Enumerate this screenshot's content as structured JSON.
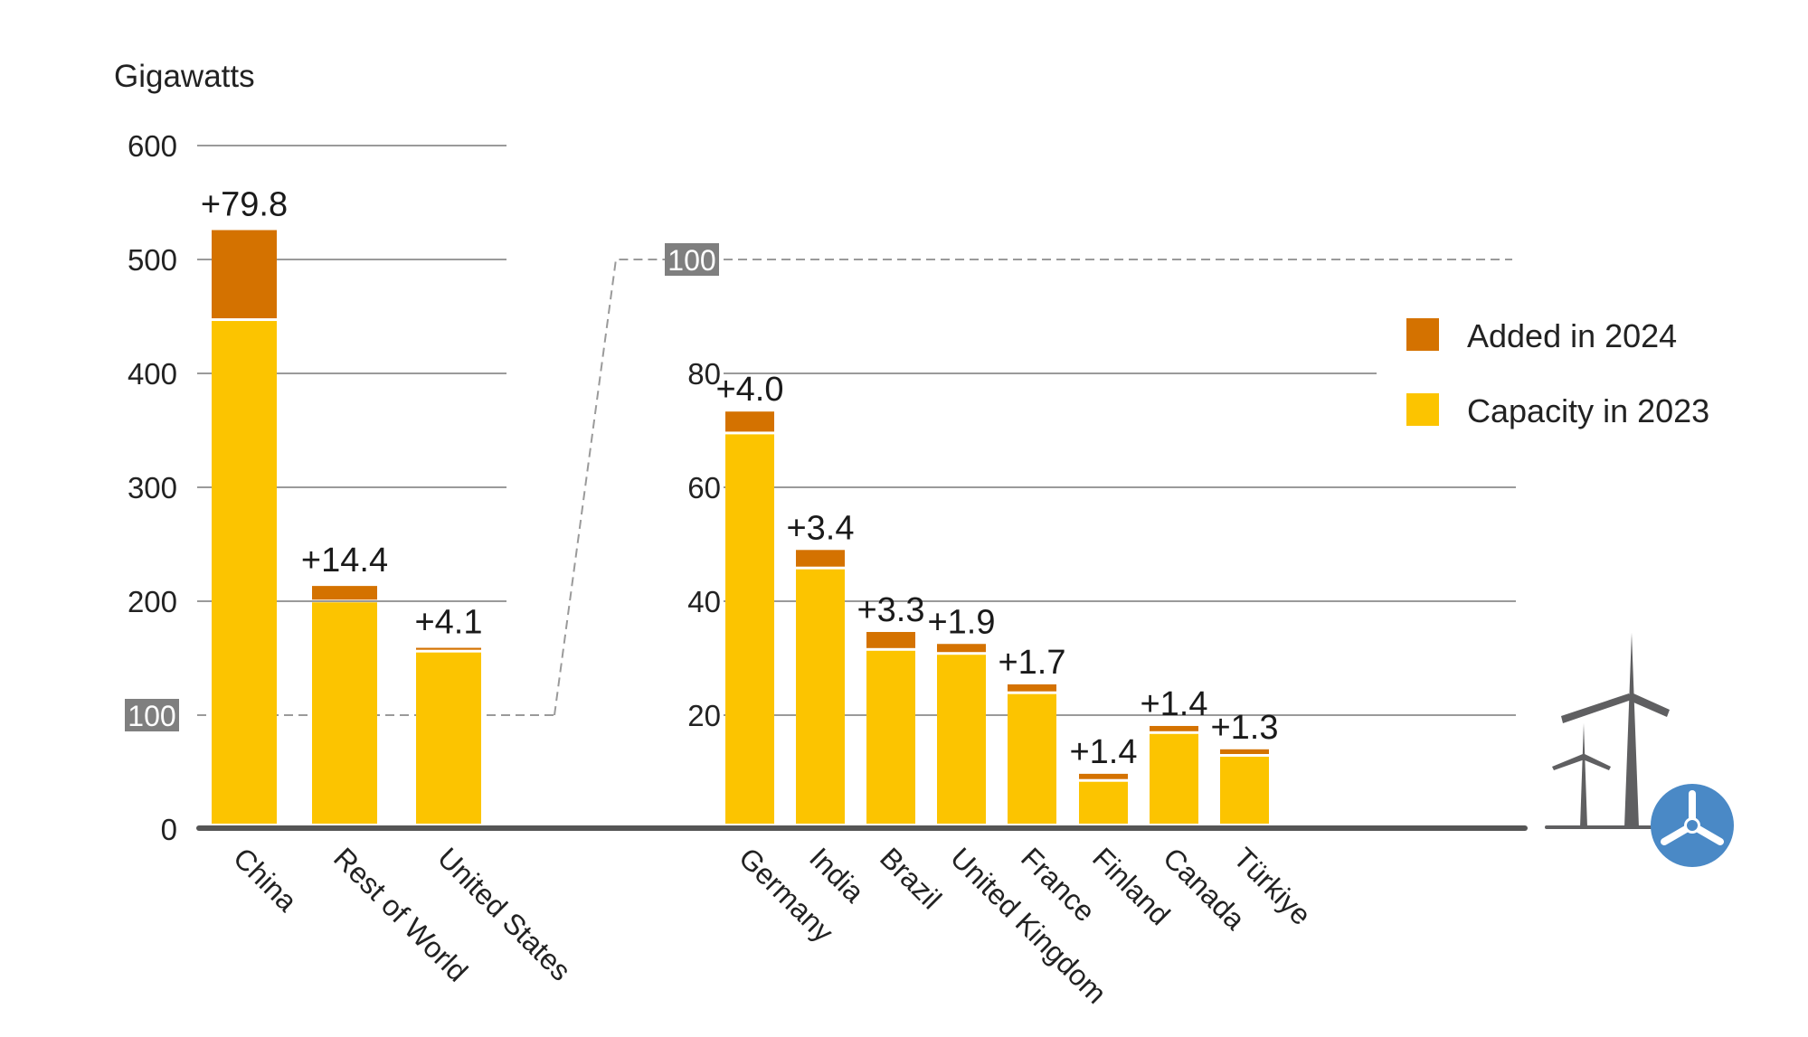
{
  "chart_data": [
    {
      "type": "bar",
      "stacked": true,
      "panel": "main",
      "ylabel": "Gigawatts",
      "ylim": [
        0,
        600
      ],
      "yticks": [
        "0",
        "100",
        "200",
        "300",
        "400",
        "500",
        "600"
      ],
      "highlight_tick": "100",
      "grid": true,
      "categories": [
        "China",
        "Rest of World",
        "United States"
      ],
      "series": [
        {
          "name": "Capacity in 2023",
          "values": [
            446,
            199,
            155
          ]
        },
        {
          "name": "Added in 2024",
          "values": [
            79.8,
            14.4,
            4.1
          ]
        }
      ],
      "data_labels": [
        "+79.8",
        "+14.4",
        "+4.1"
      ]
    },
    {
      "type": "bar",
      "stacked": true,
      "panel": "zoom-in",
      "ylim": [
        0,
        100
      ],
      "yticks": [
        "20",
        "40",
        "60",
        "80",
        "100"
      ],
      "highlight_tick": "100",
      "grid": true,
      "categories": [
        "Germany",
        "India",
        "Brazil",
        "United Kingdom",
        "France",
        "Finland",
        "Canada",
        "Türkiye"
      ],
      "series": [
        {
          "name": "Capacity in 2023",
          "values": [
            69.3,
            45.6,
            31.3,
            30.6,
            23.7,
            8.3,
            16.7,
            12.7
          ]
        },
        {
          "name": "Added in 2024",
          "values": [
            4.0,
            3.4,
            3.3,
            1.9,
            1.7,
            1.4,
            1.4,
            1.3
          ]
        }
      ],
      "data_labels": [
        "+4.0",
        "+3.4",
        "+3.3",
        "+1.9",
        "+1.7",
        "+1.4",
        "+1.4",
        "+1.3"
      ]
    }
  ],
  "legend": {
    "placement": "top-right",
    "items": [
      {
        "label": "Added in 2024",
        "color": "#D47200"
      },
      {
        "label": "Capacity in 2023",
        "color": "#FCC400"
      }
    ]
  },
  "colors": {
    "added": "#D47200",
    "base": "#FCC400",
    "axis": "#555555",
    "grid": "#9a9a9a",
    "tick_box": "#7f7f7f",
    "icon_grey": "#5f5f61",
    "icon_blue": "#4a89c6"
  },
  "icons": [
    "wind-turbine-icon",
    "turbine-badge-icon"
  ]
}
